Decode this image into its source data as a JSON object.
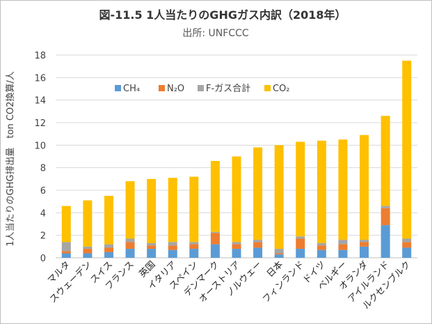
{
  "chart_data": {
    "type": "bar",
    "stacked": true,
    "title": "図-11.5  1人当たりのGHGガス内訳（2018年）",
    "subtitle": "出所: UNFCCC",
    "ylabel": "1人当たりのGHG排出量　ton CO2換算/人",
    "xlabel": "",
    "ylim": [
      0,
      18
    ],
    "yticks": [
      0,
      2,
      4,
      6,
      8,
      10,
      12,
      14,
      16,
      18
    ],
    "grid": "horizontal",
    "legend_position": "top-left",
    "categories": [
      "マルタ",
      "スウェーデン",
      "スイス",
      "フランス",
      "英国",
      "イタリア",
      "スペイン",
      "デンマーク",
      "オーストリア",
      "ノルウェー",
      "日本",
      "フィンランド",
      "ドイツ",
      "ベルギー",
      "オランダ",
      "アイルランド",
      "ルクセンブルク"
    ],
    "series": [
      {
        "name": "CH₄",
        "color": "#5b9bd5",
        "values": [
          0.4,
          0.4,
          0.5,
          0.8,
          0.8,
          0.7,
          0.8,
          1.2,
          0.8,
          0.9,
          0.3,
          0.8,
          0.7,
          0.7,
          1.0,
          2.9,
          0.9
        ]
      },
      {
        "name": "N₂O",
        "color": "#ed7d31",
        "values": [
          0.2,
          0.4,
          0.4,
          0.6,
          0.3,
          0.4,
          0.4,
          1.0,
          0.4,
          0.5,
          0.1,
          0.9,
          0.4,
          0.5,
          0.4,
          1.5,
          0.5
        ]
      },
      {
        "name": "F-ガス合計",
        "color": "#a5a5a5",
        "values": [
          0.8,
          0.2,
          0.3,
          0.3,
          0.2,
          0.3,
          0.2,
          0.1,
          0.2,
          0.2,
          0.4,
          0.2,
          0.2,
          0.4,
          0.2,
          0.2,
          0.3
        ]
      },
      {
        "name": "CO₂",
        "color": "#ffc000",
        "values": [
          3.2,
          4.1,
          4.3,
          5.1,
          5.7,
          5.7,
          5.8,
          6.3,
          7.6,
          8.2,
          9.2,
          8.4,
          9.1,
          8.9,
          9.3,
          8.0,
          15.8
        ]
      }
    ]
  }
}
